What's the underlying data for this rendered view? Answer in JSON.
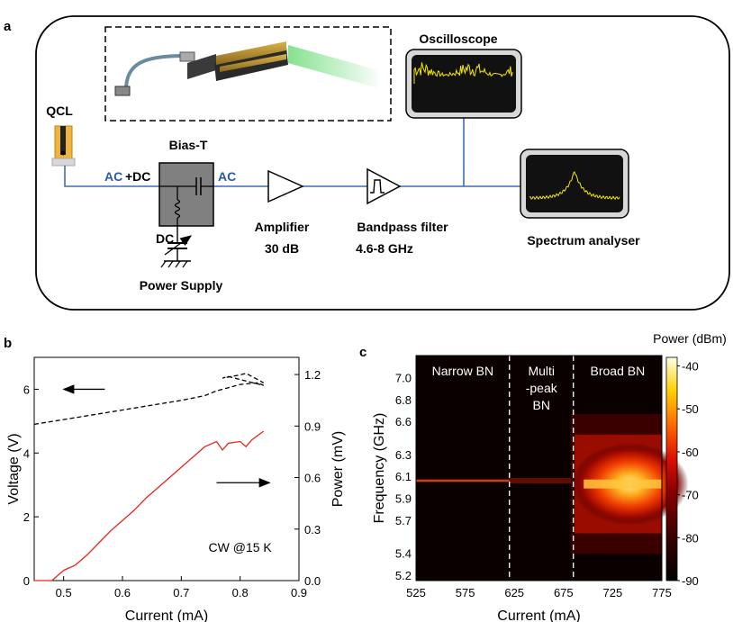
{
  "panel_a": {
    "letter": "a",
    "qcl_label": "QCL",
    "biast_label": "Bias-T",
    "acdc_ac": "AC",
    "acdc_plus": "+DC",
    "ac_out": "AC",
    "dc_label": "DC",
    "power_supply_label": "Power Supply",
    "amplifier_label": "Amplifier",
    "amplifier_gain": "30 dB",
    "bandpass_label": "Bandpass filter",
    "bandpass_range": "4.6-8 GHz",
    "oscilloscope_label": "Oscilloscope",
    "spectrum_label": "Spectrum analyser",
    "colors": {
      "wire": "#3a6fb5",
      "ac_text": "#2b5aa8",
      "scope_trace": "#f3e600",
      "laser_beam": "#7fe08a",
      "biast_fill": "#808080"
    },
    "icons": [
      "qcl-device-icon",
      "bias-t-icon",
      "amplifier-icon",
      "bandpass-filter-icon",
      "oscilloscope-icon",
      "spectrum-analyser-icon",
      "variable-capacitor-icon",
      "ground-icon"
    ]
  },
  "chart_data": [
    {
      "panel": "b",
      "type": "line",
      "xlabel": "Current (mA)",
      "ylabel": "Voltage (V)",
      "y2label": "Power (mV)",
      "xlim": [
        0.45,
        0.9
      ],
      "ylim": [
        0,
        7
      ],
      "y2lim": [
        0,
        1.3
      ],
      "xticks": [
        0.5,
        0.6,
        0.7,
        0.8,
        0.9
      ],
      "yticks": [
        0,
        2,
        4,
        6
      ],
      "y2ticks": [
        0.0,
        0.3,
        0.6,
        0.9,
        1.2
      ],
      "ytick_labels": [
        "0",
        "2",
        "4",
        "6"
      ],
      "xtick_labels": [
        "0.5",
        "0.6",
        "0.7",
        "0.8",
        "0.9"
      ],
      "y2tick_labels": [
        "0.0",
        "0.3",
        "0.6",
        "0.9",
        "1.2"
      ],
      "annotation": "CW @15 K",
      "series": [
        {
          "axis": "left",
          "style": "dashed",
          "color": "#000000",
          "x": [
            0.45,
            0.5,
            0.55,
            0.6,
            0.65,
            0.7,
            0.74,
            0.76,
            0.78,
            0.8,
            0.83,
            0.84,
            0.78,
            0.77,
            0.8,
            0.81,
            0.84
          ],
          "y": [
            4.9,
            5.05,
            5.2,
            5.35,
            5.5,
            5.65,
            5.8,
            5.95,
            6.05,
            6.15,
            6.2,
            6.12,
            6.4,
            6.35,
            6.45,
            6.5,
            6.2
          ]
        },
        {
          "axis": "right",
          "style": "solid",
          "color": "#e8261c",
          "x": [
            0.45,
            0.48,
            0.5,
            0.52,
            0.54,
            0.56,
            0.58,
            0.6,
            0.62,
            0.64,
            0.66,
            0.68,
            0.7,
            0.72,
            0.74,
            0.76,
            0.77,
            0.78,
            0.8,
            0.81,
            0.82,
            0.84
          ],
          "y": [
            0.0,
            0.0,
            0.06,
            0.09,
            0.15,
            0.22,
            0.29,
            0.35,
            0.41,
            0.48,
            0.54,
            0.6,
            0.66,
            0.72,
            0.78,
            0.81,
            0.76,
            0.8,
            0.81,
            0.78,
            0.82,
            0.87
          ]
        }
      ],
      "arrows": [
        {
          "points_to": "left",
          "at": [
            0.55,
            6.0
          ]
        },
        {
          "points_to": "right",
          "at": [
            0.78,
            0.57
          ]
        }
      ]
    },
    {
      "panel": "c",
      "type": "heatmap",
      "xlabel": "Current (mA)",
      "ylabel": "Frequency (GHz)",
      "colorbar_label": "Power (dBm)",
      "xlim": [
        525,
        775
      ],
      "ylim": [
        5.15,
        7.2
      ],
      "xticks": [
        525,
        575,
        625,
        675,
        725,
        775
      ],
      "yticks": [
        5.2,
        5.4,
        5.7,
        5.9,
        6.1,
        6.3,
        6.6,
        6.8,
        7.0
      ],
      "xtick_labels": [
        "525",
        "575",
        "625",
        "675",
        "725",
        "775"
      ],
      "ytick_labels": [
        "5.2",
        "5.4",
        "5.7",
        "5.9",
        "6.1",
        "6.3",
        "6.6",
        "6.8",
        "7.0"
      ],
      "colorbar_ticks": [
        -90,
        -80,
        -70,
        -60,
        -50,
        -40
      ],
      "colorbar_tick_labels": [
        "-90",
        "-80",
        "-70",
        "-60",
        "-50",
        "-40"
      ],
      "colorbar_range": [
        -90,
        -38
      ],
      "regions": [
        {
          "label": "Narrow BN",
          "x_range": [
            525,
            620
          ]
        },
        {
          "label": "Multi\n-peak\nBN",
          "x_range": [
            620,
            685
          ]
        },
        {
          "label": "Broad BN",
          "x_range": [
            685,
            775
          ]
        }
      ],
      "boundaries": [
        620,
        685
      ],
      "features": [
        {
          "kind": "narrow_line",
          "x_range": [
            525,
            620
          ],
          "freq": 6.06,
          "peak_dBm": -68
        },
        {
          "kind": "multi_peak",
          "x_range": [
            620,
            685
          ],
          "freq": 6.06,
          "peak_dBm": -75
        },
        {
          "kind": "broad_band",
          "x_range": [
            690,
            775
          ],
          "freq_center": 6.03,
          "freq_width": 0.75,
          "peak_dBm": -58
        }
      ]
    }
  ]
}
